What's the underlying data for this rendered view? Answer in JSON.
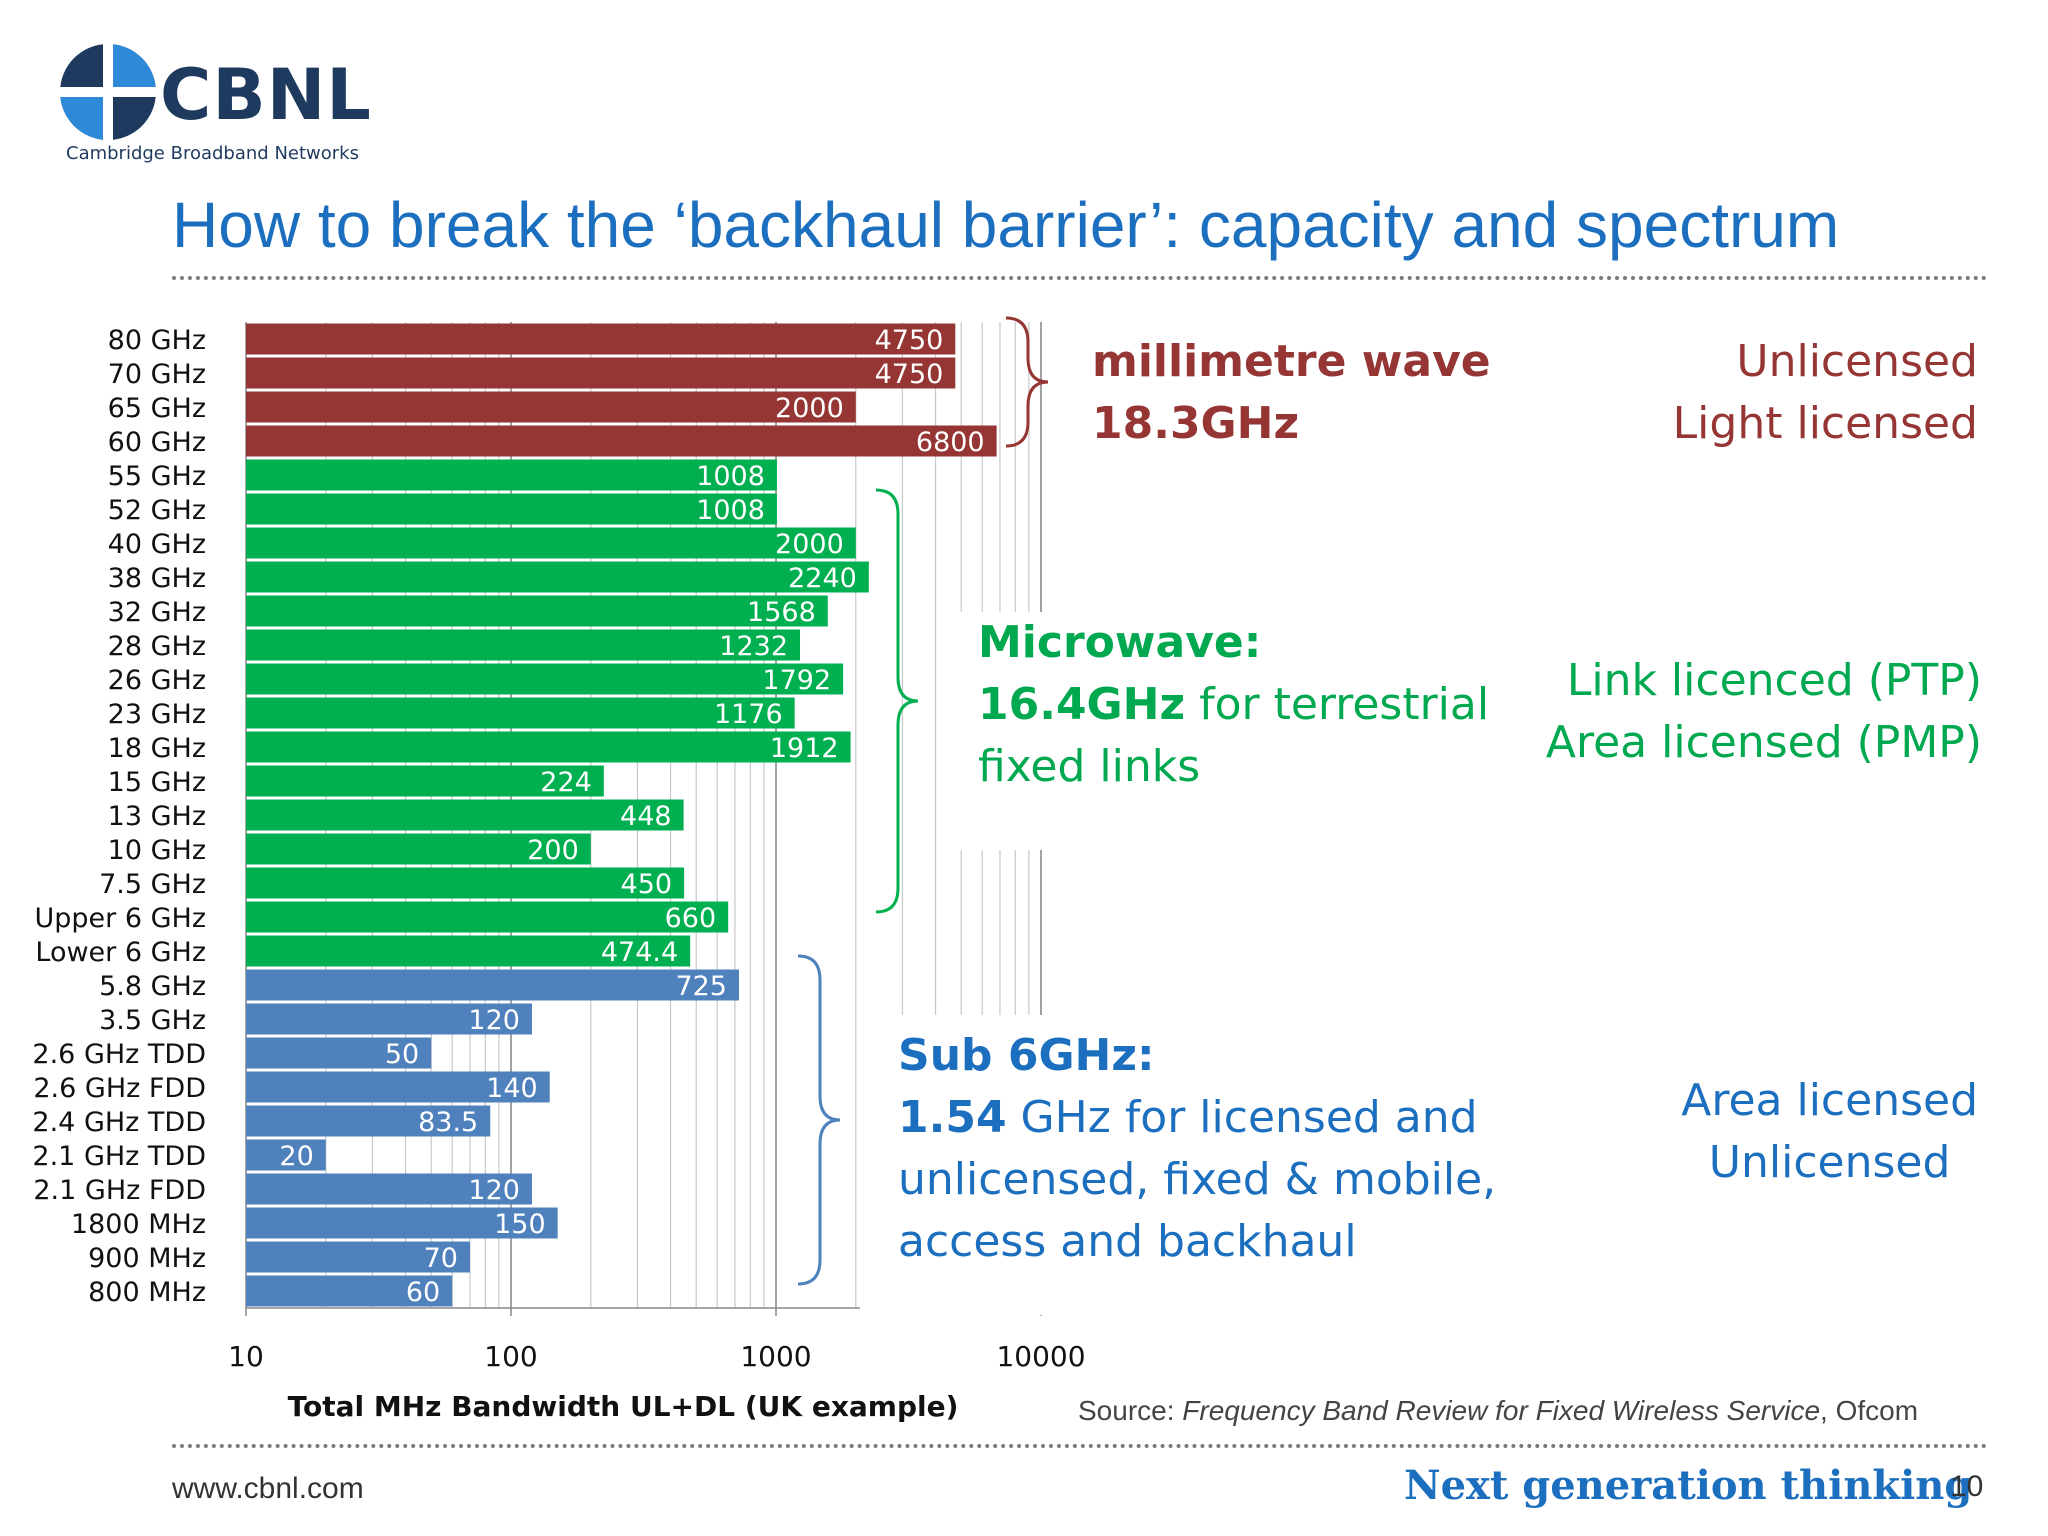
{
  "header": {
    "logo_name": "CBNL",
    "logo_subtitle": "Cambridge Broadband Networks",
    "title": "How to break the ‘backhaul barrier’: capacity and spectrum"
  },
  "colors": {
    "title": "#1c6fbf",
    "mmwave": "#963634",
    "microwave": "#00b050",
    "sub6": "#4f81bd"
  },
  "chart_data": {
    "type": "bar",
    "orientation": "horizontal",
    "x_scale": "log",
    "xlim": [
      10,
      10000
    ],
    "xticks": [
      "10",
      "100",
      "1000",
      "10000"
    ],
    "xlabel": "Total MHz Bandwidth UL+DL (UK example)",
    "grid": "vertical minor",
    "categories": [
      "80 GHz",
      "70 GHz",
      "65 GHz",
      "60 GHz",
      "55 GHz",
      "52 GHz",
      "40 GHz",
      "38 GHz",
      "32 GHz",
      "28 GHz",
      "26 GHz",
      "23 GHz",
      "18 GHz",
      "15 GHz",
      "13 GHz",
      "10 GHz",
      "7.5 GHz",
      "Upper 6 GHz",
      "Lower 6 GHz",
      "5.8 GHz",
      "3.5 GHz",
      "2.6 GHz TDD",
      "2.6 GHz FDD",
      "2.4 GHz TDD",
      "2.1 GHz TDD",
      "2.1 GHz FDD",
      "1800 MHz",
      "900 MHz",
      "800 MHz"
    ],
    "values": [
      4750,
      4750,
      2000,
      6800,
      1008,
      1008,
      2000,
      2240,
      1568,
      1232,
      1792,
      1176,
      1912,
      224,
      448,
      200,
      450,
      660,
      474.4,
      725,
      120,
      50,
      140,
      83.5,
      20,
      120,
      150,
      70,
      60
    ],
    "labels": [
      "4750",
      "4750",
      "2000",
      "6800",
      "1008",
      "1008",
      "2000",
      "2240",
      "1568",
      "1232",
      "1792",
      "1176",
      "1912",
      "224",
      "448",
      "200",
      "450",
      "660",
      "474.4",
      "725",
      "120",
      "50",
      "140",
      "83.5",
      "20",
      "120",
      "150",
      "70",
      "60"
    ],
    "groups": [
      "mmwave",
      "mmwave",
      "mmwave",
      "mmwave",
      "microwave",
      "microwave",
      "microwave",
      "microwave",
      "microwave",
      "microwave",
      "microwave",
      "microwave",
      "microwave",
      "microwave",
      "microwave",
      "microwave",
      "microwave",
      "microwave",
      "microwave",
      "sub6",
      "sub6",
      "sub6",
      "sub6",
      "sub6",
      "sub6",
      "sub6",
      "sub6",
      "sub6",
      "sub6"
    ]
  },
  "annotations": {
    "mmwave": {
      "heading": "millimetre wave",
      "amount": "18.3GHz",
      "lic1": "Unlicensed",
      "lic2": "Light licensed"
    },
    "microwave": {
      "heading": "Microwave:",
      "amount": "16.4GHz",
      "desc1": " for terrestrial",
      "desc2": "fixed links",
      "lic1": "Link licenced (PTP)",
      "lic2": "Area licensed (PMP)"
    },
    "sub6": {
      "heading": "Sub 6GHz:",
      "amount": "1.54",
      "desc1": " GHz for licensed and",
      "desc2": "unlicensed, fixed & mobile,",
      "desc3": "access and backhaul",
      "lic1": "Area licensed",
      "lic2": "Unlicensed"
    }
  },
  "footer": {
    "source_prefix": "Source: ",
    "source_title": "Frequency Band Review for Fixed Wireless Service",
    "source_suffix": ", Ofcom",
    "url": "www.cbnl.com",
    "tagline": "Next generation thinking",
    "page": "10"
  }
}
